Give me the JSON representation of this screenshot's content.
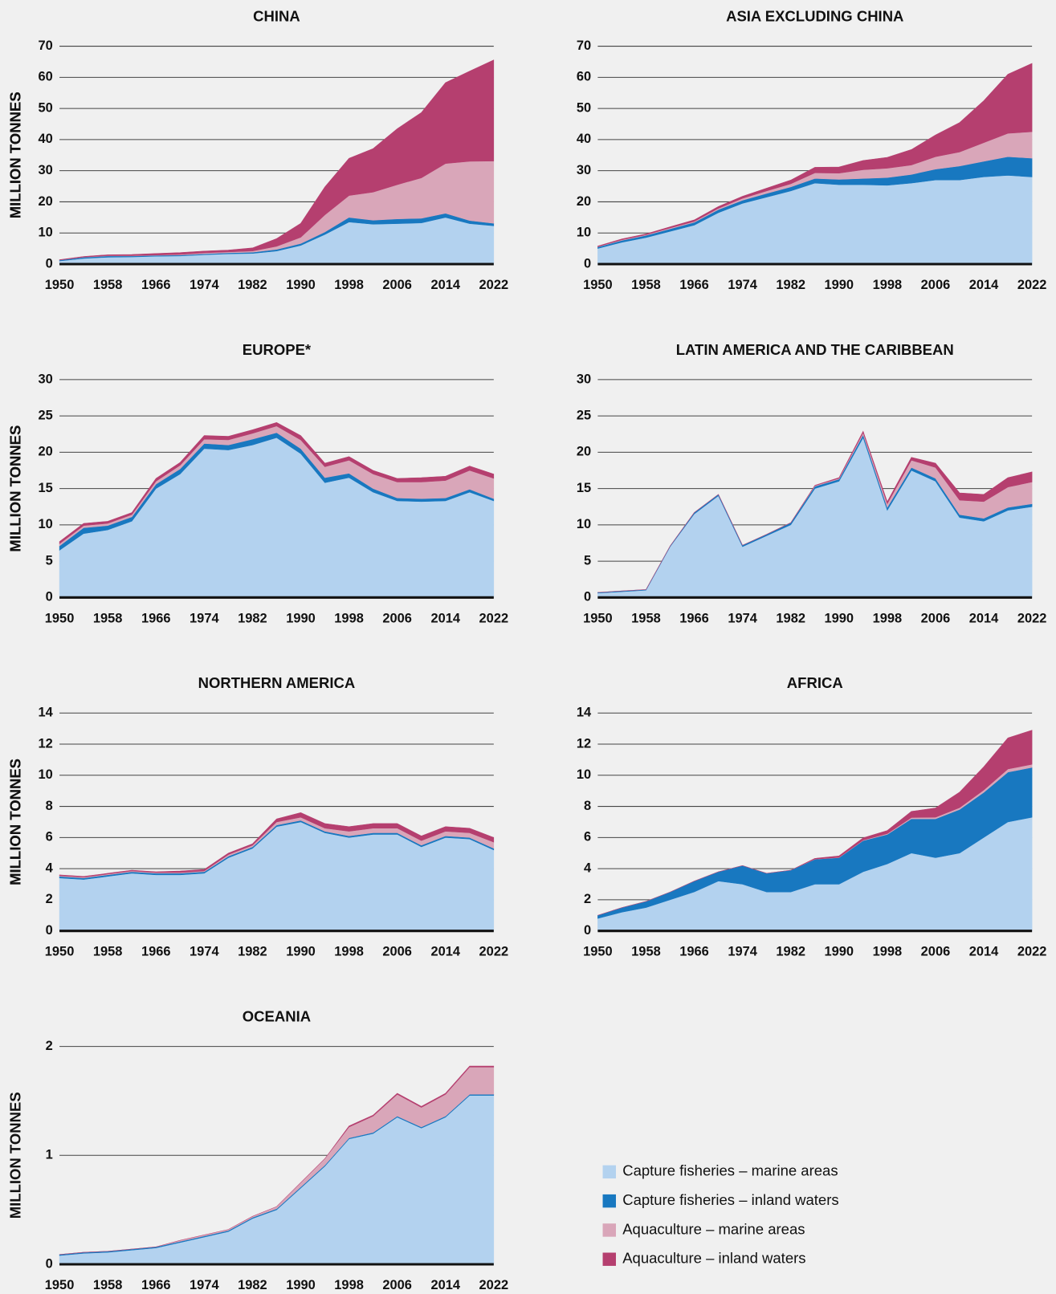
{
  "legend": [
    {
      "name": "Capture fisheries – marine areas",
      "color": "#b3d2ef"
    },
    {
      "name": "Capture fisheries – inland waters",
      "color": "#1878c0"
    },
    {
      "name": "Aquaculture – marine areas",
      "color": "#d9a6b9"
    },
    {
      "name": "Aquaculture – inland waters",
      "color": "#b53f6f"
    }
  ],
  "chart_data": [
    {
      "type": "area",
      "title": "CHINA",
      "ylabel": "MILLION TONNES",
      "x": [
        1950,
        1954,
        1958,
        1962,
        1966,
        1970,
        1974,
        1978,
        1982,
        1986,
        1990,
        1994,
        1998,
        2002,
        2006,
        2010,
        2014,
        2018,
        2022
      ],
      "xlim": [
        1950,
        2022
      ],
      "xticks": [
        1950,
        1958,
        1966,
        1974,
        1982,
        1990,
        1998,
        2006,
        2014,
        2022
      ],
      "ylim": [
        0,
        70
      ],
      "yticks": [
        0,
        10,
        20,
        30,
        40,
        50,
        60,
        70
      ],
      "series": [
        {
          "values": [
            1.0,
            1.8,
            2.2,
            2.3,
            2.5,
            2.6,
            3.0,
            3.3,
            3.4,
            4.2,
            6.0,
            9.5,
            13.5,
            12.8,
            13.0,
            13.2,
            15.0,
            13.0,
            12.3
          ]
        },
        {
          "values": [
            0.3,
            0.4,
            0.4,
            0.3,
            0.3,
            0.3,
            0.3,
            0.3,
            0.4,
            0.5,
            0.6,
            0.8,
            1.5,
            1.3,
            1.5,
            1.5,
            1.3,
            1.0,
            0.8
          ]
        },
        {
          "values": [
            0,
            0.05,
            0.1,
            0.1,
            0.1,
            0.2,
            0.3,
            0.3,
            0.4,
            1.0,
            2.0,
            5.5,
            7.0,
            9.0,
            11.0,
            13.0,
            16.0,
            19.0,
            20.0
          ]
        },
        {
          "values": [
            0.1,
            0.2,
            0.3,
            0.4,
            0.5,
            0.6,
            0.6,
            0.6,
            1.0,
            2.5,
            4.5,
            9.0,
            12.0,
            14.0,
            18.0,
            21.0,
            26.0,
            29.0,
            32.5
          ]
        }
      ]
    },
    {
      "type": "area",
      "title": "ASIA EXCLUDING CHINA",
      "ylabel": "MILLION TONNES",
      "x": [
        1950,
        1954,
        1958,
        1962,
        1966,
        1970,
        1974,
        1978,
        1982,
        1986,
        1990,
        1994,
        1998,
        2002,
        2006,
        2010,
        2014,
        2018,
        2022
      ],
      "xlim": [
        1950,
        2022
      ],
      "xticks": [
        1950,
        1958,
        1966,
        1974,
        1982,
        1990,
        1998,
        2006,
        2014,
        2022
      ],
      "ylim": [
        0,
        70
      ],
      "yticks": [
        0,
        10,
        20,
        30,
        40,
        50,
        60,
        70
      ],
      "series": [
        {
          "values": [
            5.0,
            7.0,
            8.5,
            10.5,
            12.5,
            16.5,
            19.5,
            21.5,
            23.5,
            26.0,
            25.5,
            25.5,
            25.3,
            26.0,
            27.0,
            27.0,
            28.0,
            28.5,
            28.0
          ]
        },
        {
          "values": [
            0.5,
            0.6,
            0.7,
            0.8,
            0.9,
            1.0,
            1.0,
            1.2,
            1.3,
            1.5,
            1.7,
            2.0,
            2.5,
            2.8,
            3.5,
            4.5,
            5.0,
            6.0,
            6.0
          ]
        },
        {
          "values": [
            0.1,
            0.2,
            0.2,
            0.3,
            0.3,
            0.4,
            0.6,
            0.8,
            1.0,
            1.8,
            2.0,
            2.8,
            3.0,
            3.0,
            4.0,
            4.5,
            6.0,
            7.5,
            8.5
          ]
        },
        {
          "values": [
            0.2,
            0.3,
            0.3,
            0.4,
            0.5,
            0.6,
            0.7,
            0.9,
            1.2,
            1.8,
            2.0,
            3.0,
            3.5,
            5.0,
            7.0,
            9.5,
            13.5,
            19.0,
            22.0
          ]
        }
      ]
    },
    {
      "type": "area",
      "title": "EUROPE*",
      "ylabel": "MILLION TONNES",
      "x": [
        1950,
        1954,
        1958,
        1962,
        1966,
        1970,
        1974,
        1978,
        1982,
        1986,
        1990,
        1994,
        1998,
        2002,
        2006,
        2010,
        2014,
        2018,
        2022
      ],
      "xlim": [
        1950,
        2022
      ],
      "xticks": [
        1950,
        1958,
        1966,
        1974,
        1982,
        1990,
        1998,
        2006,
        2014,
        2022
      ],
      "ylim": [
        0,
        30
      ],
      "yticks": [
        0,
        5,
        10,
        15,
        20,
        25,
        30
      ],
      "series": [
        {
          "values": [
            6.5,
            8.8,
            9.3,
            10.5,
            15.0,
            17.0,
            20.5,
            20.3,
            21.0,
            22.0,
            19.8,
            15.8,
            16.5,
            14.5,
            13.3,
            13.2,
            13.3,
            14.5,
            13.3
          ]
        },
        {
          "values": [
            0.6,
            0.8,
            0.6,
            0.6,
            0.6,
            0.7,
            0.7,
            0.7,
            0.8,
            0.7,
            0.7,
            0.7,
            0.6,
            0.5,
            0.4,
            0.4,
            0.4,
            0.4,
            0.3
          ]
        },
        {
          "values": [
            0.3,
            0.3,
            0.3,
            0.3,
            0.4,
            0.5,
            0.6,
            0.7,
            0.8,
            0.9,
            1.2,
            1.5,
            1.8,
            2.0,
            2.2,
            2.3,
            2.4,
            2.6,
            2.8
          ]
        },
        {
          "values": [
            0.3,
            0.3,
            0.3,
            0.3,
            0.4,
            0.4,
            0.5,
            0.5,
            0.5,
            0.5,
            0.6,
            0.5,
            0.5,
            0.5,
            0.5,
            0.6,
            0.6,
            0.6,
            0.6
          ]
        }
      ]
    },
    {
      "type": "area",
      "title": "LATIN AMERICA AND THE CARIBBEAN",
      "ylabel": "MILLION TONNES",
      "x": [
        1950,
        1954,
        1958,
        1962,
        1966,
        1970,
        1974,
        1978,
        1982,
        1986,
        1990,
        1994,
        1998,
        2002,
        2006,
        2010,
        2014,
        2018,
        2022
      ],
      "xlim": [
        1950,
        2022
      ],
      "xticks": [
        1950,
        1958,
        1966,
        1974,
        1982,
        1990,
        1998,
        2006,
        2014,
        2022
      ],
      "ylim": [
        0,
        30
      ],
      "yticks": [
        0,
        5,
        10,
        15,
        20,
        25,
        30
      ],
      "series": [
        {
          "values": [
            0.6,
            0.8,
            1.0,
            7.0,
            11.5,
            14.0,
            7.0,
            8.5,
            10.0,
            15.0,
            16.0,
            22.0,
            12.0,
            17.5,
            16.0,
            11.0,
            10.5,
            12.0,
            12.5
          ]
        },
        {
          "values": [
            0.1,
            0.1,
            0.1,
            0.1,
            0.2,
            0.2,
            0.2,
            0.2,
            0.3,
            0.3,
            0.3,
            0.4,
            0.4,
            0.4,
            0.4,
            0.4,
            0.4,
            0.4,
            0.4
          ]
        },
        {
          "values": [
            0,
            0,
            0,
            0,
            0,
            0,
            0,
            0,
            0,
            0.1,
            0.1,
            0.3,
            0.5,
            1.0,
            1.5,
            2.0,
            2.3,
            2.8,
            3.0
          ]
        },
        {
          "values": [
            0,
            0,
            0,
            0,
            0,
            0,
            0,
            0,
            0,
            0.05,
            0.1,
            0.2,
            0.3,
            0.4,
            0.6,
            1.0,
            1.0,
            1.3,
            1.4
          ]
        }
      ]
    },
    {
      "type": "area",
      "title": "NORTHERN AMERICA",
      "ylabel": "MILLION TONNES",
      "x": [
        1950,
        1954,
        1958,
        1962,
        1966,
        1970,
        1974,
        1978,
        1982,
        1986,
        1990,
        1994,
        1998,
        2002,
        2006,
        2010,
        2014,
        2018,
        2022
      ],
      "xlim": [
        1950,
        2022
      ],
      "xticks": [
        1950,
        1958,
        1966,
        1974,
        1982,
        1990,
        1998,
        2006,
        2014,
        2022
      ],
      "ylim": [
        0,
        14
      ],
      "yticks": [
        0,
        2,
        4,
        6,
        8,
        10,
        12,
        14
      ],
      "series": [
        {
          "values": [
            3.4,
            3.3,
            3.5,
            3.7,
            3.6,
            3.6,
            3.7,
            4.7,
            5.3,
            6.7,
            7.0,
            6.3,
            6.0,
            6.2,
            6.2,
            5.4,
            6.0,
            5.9,
            5.2
          ]
        },
        {
          "values": [
            0.1,
            0.1,
            0.1,
            0.1,
            0.1,
            0.1,
            0.1,
            0.1,
            0.1,
            0.1,
            0.1,
            0.1,
            0.1,
            0.1,
            0.1,
            0.1,
            0.1,
            0.1,
            0.1
          ]
        },
        {
          "values": [
            0.05,
            0.05,
            0.05,
            0.05,
            0.05,
            0.05,
            0.05,
            0.1,
            0.1,
            0.2,
            0.2,
            0.2,
            0.3,
            0.3,
            0.3,
            0.3,
            0.3,
            0.3,
            0.4
          ]
        },
        {
          "values": [
            0.05,
            0.05,
            0.05,
            0.05,
            0.05,
            0.1,
            0.1,
            0.1,
            0.1,
            0.2,
            0.3,
            0.3,
            0.3,
            0.3,
            0.3,
            0.3,
            0.3,
            0.3,
            0.3
          ]
        }
      ]
    },
    {
      "type": "area",
      "title": "AFRICA",
      "ylabel": "MILLION TONNES",
      "x": [
        1950,
        1954,
        1958,
        1962,
        1966,
        1970,
        1974,
        1978,
        1982,
        1986,
        1990,
        1994,
        1998,
        2002,
        2006,
        2010,
        2014,
        2018,
        2022
      ],
      "xlim": [
        1950,
        2022
      ],
      "xticks": [
        1950,
        1958,
        1966,
        1974,
        1982,
        1990,
        1998,
        2006,
        2014,
        2022
      ],
      "ylim": [
        0,
        14
      ],
      "yticks": [
        0,
        2,
        4,
        6,
        8,
        10,
        12,
        14
      ],
      "series": [
        {
          "values": [
            0.8,
            1.2,
            1.5,
            2.0,
            2.5,
            3.2,
            3.0,
            2.5,
            2.5,
            3.0,
            3.0,
            3.8,
            4.3,
            5.0,
            4.7,
            5.0,
            6.0,
            7.0,
            7.3
          ]
        },
        {
          "values": [
            0.2,
            0.3,
            0.4,
            0.5,
            0.7,
            0.6,
            1.2,
            1.2,
            1.4,
            1.6,
            1.7,
            2.0,
            1.9,
            2.2,
            2.5,
            2.8,
            2.9,
            3.2,
            3.2
          ]
        },
        {
          "values": [
            0,
            0,
            0,
            0,
            0,
            0,
            0,
            0,
            0,
            0.01,
            0.02,
            0.03,
            0.05,
            0.08,
            0.1,
            0.12,
            0.15,
            0.2,
            0.2
          ]
        },
        {
          "values": [
            0,
            0,
            0,
            0,
            0,
            0,
            0,
            0,
            0,
            0.05,
            0.1,
            0.15,
            0.2,
            0.4,
            0.6,
            1.0,
            1.5,
            2.0,
            2.2
          ]
        }
      ]
    },
    {
      "type": "area",
      "title": "OCEANIA",
      "ylabel": "MILLION TONNES",
      "x": [
        1950,
        1954,
        1958,
        1962,
        1966,
        1970,
        1974,
        1978,
        1982,
        1986,
        1990,
        1994,
        1998,
        2002,
        2006,
        2010,
        2014,
        2018,
        2022
      ],
      "xlim": [
        1950,
        2022
      ],
      "xticks": [
        1950,
        1958,
        1966,
        1974,
        1982,
        1990,
        1998,
        2006,
        2014,
        2022
      ],
      "ylim": [
        0,
        2
      ],
      "yticks": [
        0,
        1,
        2
      ],
      "series": [
        {
          "values": [
            0.08,
            0.1,
            0.11,
            0.13,
            0.15,
            0.2,
            0.25,
            0.3,
            0.42,
            0.5,
            0.7,
            0.9,
            1.15,
            1.2,
            1.35,
            1.25,
            1.35,
            1.55,
            1.55
          ]
        },
        {
          "values": [
            0.01,
            0.01,
            0.01,
            0.01,
            0.01,
            0.01,
            0.01,
            0.01,
            0.01,
            0.01,
            0.01,
            0.01,
            0.01,
            0.01,
            0.01,
            0.01,
            0.01,
            0.01,
            0.01
          ]
        },
        {
          "values": [
            0,
            0,
            0,
            0,
            0,
            0.01,
            0.01,
            0.01,
            0.01,
            0.02,
            0.04,
            0.06,
            0.1,
            0.15,
            0.2,
            0.18,
            0.2,
            0.25,
            0.25
          ]
        },
        {
          "values": [
            0,
            0,
            0,
            0,
            0,
            0,
            0,
            0,
            0,
            0,
            0,
            0,
            0.01,
            0.01,
            0.01,
            0.01,
            0.01,
            0.01,
            0.01
          ]
        }
      ]
    }
  ]
}
